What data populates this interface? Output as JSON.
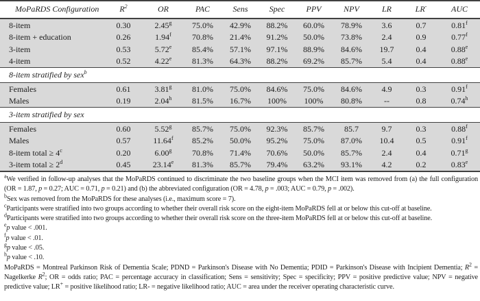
{
  "colors": {
    "row_bg": "#d9d9d9",
    "rule": "#404040",
    "text": "#1c1c1c",
    "page_bg": "#ffffff"
  },
  "table": {
    "columns": [
      "MoPaRDS Configuration",
      "R^{2}",
      "OR",
      "PAC",
      "Sens",
      "Spec",
      "PPV",
      "NPV",
      "LR",
      "LR^{-}",
      "AUC"
    ],
    "sections": [
      {
        "title": "",
        "rows": [
          {
            "label": "8-item",
            "cells": [
              "0.30",
              "2.45^{g}",
              "75.0%",
              "42.9%",
              "88.2%",
              "60.0%",
              "78.9%",
              "3.6",
              "0.7",
              "0.81^{f}"
            ]
          },
          {
            "label": "8-item + education",
            "cells": [
              "0.26",
              "1.94^{f}",
              "70.8%",
              "21.4%",
              "91.2%",
              "50.0%",
              "73.8%",
              "2.4",
              "0.9",
              "0.77^{f}"
            ]
          },
          {
            "label": "3-item",
            "cells": [
              "0.53",
              "5.72^{e}",
              "85.4%",
              "57.1%",
              "97.1%",
              "88.9%",
              "84.6%",
              "19.7",
              "0.4",
              "0.88^{e}"
            ]
          },
          {
            "label": "4-item",
            "cells": [
              "0.52",
              "4.22^{e}",
              "81.3%",
              "64.3%",
              "88.2%",
              "69.2%",
              "85.7%",
              "5.4",
              "0.4",
              "0.88^{e}"
            ]
          }
        ]
      },
      {
        "title": "8-item stratified by sex^{b}",
        "rows": [
          {
            "label": "Females",
            "cells": [
              "0.61",
              "3.81^{g}",
              "81.0%",
              "75.0%",
              "84.6%",
              "75.0%",
              "84.6%",
              "4.9",
              "0.3",
              "0.91^{f}"
            ]
          },
          {
            "label": "Males",
            "cells": [
              "0.19",
              "2.04^{h}",
              "81.5%",
              "16.7%",
              "100%",
              "100%",
              "80.8%",
              "--",
              "0.8",
              "0.74^{h}"
            ]
          }
        ]
      },
      {
        "title": "3-item stratified by sex",
        "rows": [
          {
            "label": "Females",
            "cells": [
              "0.60",
              "5.52^{g}",
              "85.7%",
              "75.0%",
              "92.3%",
              "85.7%",
              "85.7",
              "9.7",
              "0.3",
              "0.88^{f}"
            ]
          },
          {
            "label": "Males",
            "cells": [
              "0.57",
              "11.64^{f}",
              "85.2%",
              "50.0%",
              "95.2%",
              "75.0%",
              "87.0%",
              "10.4",
              "0.5",
              "0.91^{f}"
            ]
          },
          {
            "label": "8-item total ≥ 4^{c}",
            "cells": [
              "0.20",
              "6.00^{g}",
              "70.8%",
              "71.4%",
              "70.6%",
              "50.0%",
              "85.7%",
              "2.4",
              "0.4",
              "0.71^{g}"
            ]
          },
          {
            "label": "3-item total ≥ 2^{d}",
            "cells": [
              "0.45",
              "23.14^{e}",
              "81.3%",
              "85.7%",
              "79.4%",
              "63.2%",
              "93.1%",
              "4.2",
              "0.2",
              "0.83^{e}"
            ]
          }
        ]
      }
    ]
  },
  "footnotes": [
    {
      "marker": "a",
      "text": "We verified in follow-up analyses that the MoPaRDS continued to discriminate the two baseline groups when the MCI item was removed from (a) the full configuration (OR = 1.87, *p* = 0.27; AUC = 0.71, *p* = 0.21) and (b) the abbreviated configuration (OR = 4.78, *p* = .003; AUC = 0.79, *p* = .002)."
    },
    {
      "marker": "b",
      "text": "Sex was removed from the MoPaRDS for these analyses (i.e., maximum score = 7)."
    },
    {
      "marker": "c",
      "text": "Participants were stratified into two groups according to whether their overall risk score on the eight-item MoPaRDS fell at or below this cut-off at baseline."
    },
    {
      "marker": "d",
      "text": "Participants were stratified into two groups according to whether their overall risk score on the three-item MoPaRDS fell at or below this cut-off at baseline."
    },
    {
      "marker": "e",
      "text": "*p* value < .001."
    },
    {
      "marker": "f",
      "text": "*p* value < .01."
    },
    {
      "marker": "g",
      "text": "*p* value < .05."
    },
    {
      "marker": "h",
      "text": "*p* value < .10."
    },
    {
      "marker": "",
      "text": "MoPaRDS = Montreal Parkinson Risk of Dementia Scale; PDND = Parkinson's Disease with No Dementia; PDID = Parkinson's Disease with Incipient Dementia; *R*^{2} = Nagelkerke *R*^{2}; OR = odds ratio; PAC = percentage accuracy in classification; Sens = sensitivity; Spec = specificity; PPV = positive predictive value; NPV = negative predictive value; LR^{+} = positive likelihood ratio; LR- = negative likelihood ratio; AUC = area under the receiver operating characteristic curve."
    }
  ]
}
